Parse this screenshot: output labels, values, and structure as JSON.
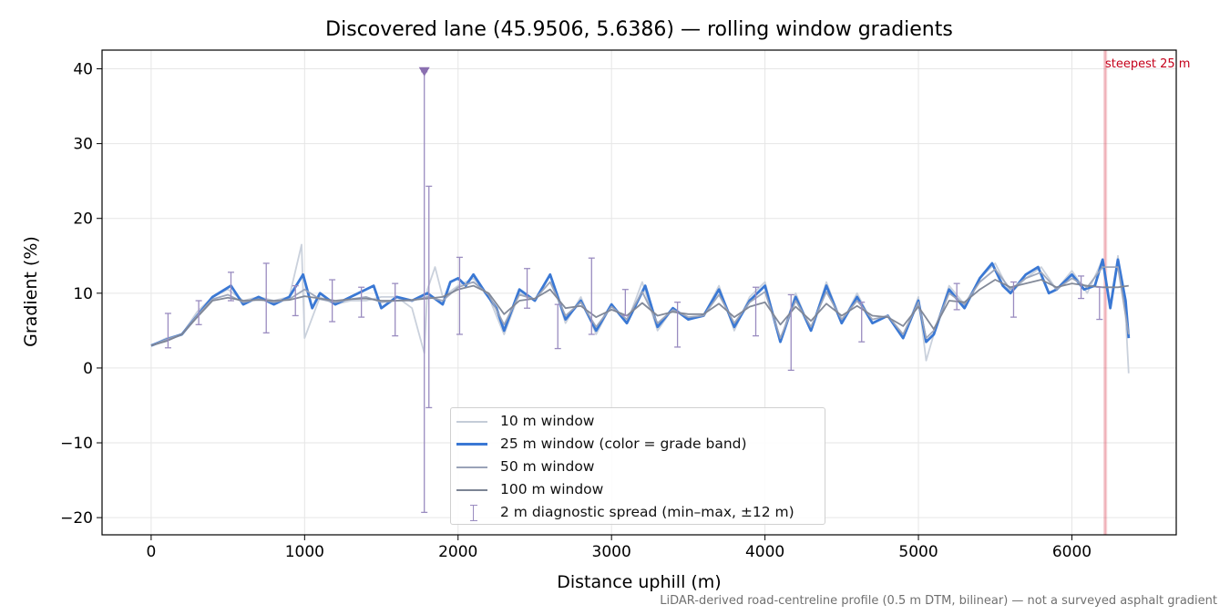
{
  "chart_data": {
    "type": "line",
    "title": "Discovered lane (45.9506, 5.6386) — rolling window gradients",
    "xlabel": "Distance uphill (m)",
    "ylabel": "Gradient (%)",
    "xlim": [
      -320,
      6680
    ],
    "ylim": [
      -22.3,
      42.5
    ],
    "x_ticks": [
      "0",
      "1000",
      "2000",
      "3000",
      "4000",
      "5000",
      "6000"
    ],
    "y_ticks": [
      "−20",
      "−10",
      "0",
      "10",
      "20",
      "30",
      "40"
    ],
    "grid": true,
    "legend_position": "lower center",
    "series": [
      {
        "name": "10 m window",
        "color": "#c4ccd8",
        "x": [
          0,
          100,
          200,
          300,
          400,
          500,
          600,
          700,
          800,
          900,
          980,
          1000,
          1100,
          1200,
          1300,
          1400,
          1500,
          1600,
          1700,
          1780,
          1800,
          1850,
          1900,
          2000,
          2100,
          2200,
          2300,
          2400,
          2500,
          2600,
          2700,
          2800,
          2900,
          3000,
          3100,
          3200,
          3300,
          3400,
          3500,
          3600,
          3700,
          3800,
          3900,
          4000,
          4100,
          4200,
          4300,
          4400,
          4500,
          4600,
          4700,
          4800,
          4900,
          5000,
          5050,
          5100,
          5200,
          5300,
          5400,
          5500,
          5600,
          5700,
          5800,
          5900,
          6000,
          6100,
          6200,
          6250,
          6300,
          6350,
          6370
        ],
        "values": [
          3.0,
          4.0,
          4.5,
          7.5,
          9.5,
          10.5,
          9.0,
          9.5,
          9.0,
          9.5,
          16.5,
          4.0,
          9.5,
          8.5,
          9.0,
          9.0,
          9.5,
          9.5,
          8.0,
          2.0,
          10.5,
          13.5,
          9.5,
          11.0,
          12.0,
          9.5,
          4.5,
          10.0,
          9.0,
          12.5,
          6.0,
          9.5,
          4.5,
          8.5,
          6.0,
          11.5,
          5.0,
          8.0,
          6.5,
          7.0,
          11.0,
          5.0,
          9.5,
          11.5,
          3.5,
          10.0,
          5.0,
          11.5,
          6.0,
          10.0,
          6.0,
          7.0,
          4.0,
          9.5,
          1.0,
          4.5,
          11.0,
          8.5,
          12.0,
          14.0,
          10.0,
          12.0,
          13.5,
          10.5,
          13.0,
          10.0,
          14.5,
          8.5,
          15.0,
          7.0,
          -0.7
        ]
      },
      {
        "name": "25 m window (color = grade band)",
        "color": "#3a78d4",
        "x": [
          0,
          100,
          200,
          300,
          400,
          520,
          600,
          700,
          800,
          900,
          990,
          1050,
          1100,
          1200,
          1300,
          1450,
          1500,
          1600,
          1700,
          1800,
          1900,
          1950,
          2000,
          2050,
          2100,
          2180,
          2250,
          2300,
          2400,
          2500,
          2600,
          2700,
          2800,
          2900,
          3000,
          3100,
          3220,
          3300,
          3400,
          3500,
          3600,
          3700,
          3800,
          3900,
          4000,
          4100,
          4200,
          4300,
          4400,
          4500,
          4600,
          4700,
          4800,
          4900,
          5000,
          5050,
          5100,
          5200,
          5300,
          5400,
          5480,
          5550,
          5600,
          5700,
          5780,
          5850,
          5900,
          6000,
          6080,
          6150,
          6200,
          6250,
          6300,
          6350,
          6370
        ],
        "values": [
          3.0,
          3.8,
          4.5,
          7.0,
          9.5,
          11.0,
          8.5,
          9.5,
          8.5,
          9.5,
          12.5,
          8.0,
          10.0,
          8.5,
          9.5,
          11.0,
          8.0,
          9.5,
          9.0,
          10.0,
          8.5,
          11.5,
          12.0,
          11.0,
          12.5,
          10.0,
          8.0,
          5.0,
          10.5,
          9.0,
          12.5,
          6.5,
          9.0,
          5.0,
          8.5,
          6.0,
          11.0,
          5.5,
          8.0,
          6.5,
          7.0,
          10.5,
          5.5,
          9.0,
          11.0,
          3.5,
          9.5,
          5.0,
          11.0,
          6.0,
          9.5,
          6.0,
          7.0,
          4.0,
          9.0,
          3.5,
          4.5,
          10.5,
          8.0,
          12.0,
          14.0,
          11.0,
          10.0,
          12.5,
          13.5,
          10.0,
          10.5,
          12.5,
          10.5,
          11.0,
          14.5,
          8.0,
          14.5,
          9.0,
          4.0
        ]
      },
      {
        "name": "50 m window",
        "color": "#9aa3b8",
        "x": [
          0,
          100,
          200,
          300,
          400,
          500,
          600,
          700,
          800,
          900,
          1000,
          1100,
          1200,
          1300,
          1400,
          1500,
          1600,
          1700,
          1800,
          1900,
          2000,
          2100,
          2200,
          2300,
          2400,
          2500,
          2600,
          2700,
          2800,
          2900,
          3000,
          3100,
          3200,
          3300,
          3400,
          3500,
          3600,
          3700,
          3800,
          3900,
          4000,
          4100,
          4200,
          4300,
          4400,
          4500,
          4600,
          4700,
          4800,
          4900,
          5000,
          5050,
          5100,
          5200,
          5300,
          5400,
          5500,
          5600,
          5700,
          5800,
          5900,
          6000,
          6100,
          6200,
          6300,
          6370
        ],
        "values": [
          3.0,
          3.8,
          4.5,
          7.0,
          9.2,
          9.8,
          8.8,
          9.2,
          8.8,
          9.2,
          10.5,
          9.2,
          8.8,
          9.2,
          9.5,
          8.8,
          9.0,
          9.0,
          9.5,
          9.0,
          10.8,
          11.5,
          9.8,
          5.8,
          9.8,
          9.2,
          11.5,
          7.0,
          8.8,
          5.5,
          8.2,
          6.5,
          10.2,
          6.0,
          7.8,
          6.8,
          7.0,
          9.8,
          6.0,
          8.8,
          10.2,
          4.0,
          9.0,
          5.5,
          10.2,
          6.5,
          9.0,
          6.5,
          7.0,
          4.5,
          8.8,
          4.0,
          5.0,
          10.0,
          8.5,
          11.5,
          13.2,
          10.5,
          12.0,
          12.8,
          10.5,
          12.0,
          10.8,
          13.5,
          13.5,
          4.5
        ]
      },
      {
        "name": "100 m window",
        "color": "#7c8494",
        "x": [
          0,
          100,
          200,
          300,
          400,
          500,
          600,
          700,
          800,
          900,
          1000,
          1100,
          1200,
          1300,
          1400,
          1500,
          1600,
          1700,
          1800,
          1900,
          2000,
          2100,
          2200,
          2300,
          2400,
          2500,
          2600,
          2700,
          2800,
          2900,
          3000,
          3100,
          3200,
          3300,
          3400,
          3500,
          3600,
          3700,
          3800,
          3900,
          4000,
          4100,
          4200,
          4300,
          4400,
          4500,
          4600,
          4700,
          4800,
          4900,
          5000,
          5100,
          5200,
          5300,
          5400,
          5500,
          5600,
          5700,
          5800,
          5900,
          6000,
          6100,
          6200,
          6300,
          6370
        ],
        "values": [
          3.0,
          3.6,
          4.5,
          6.8,
          9.0,
          9.4,
          9.0,
          9.1,
          9.0,
          9.1,
          9.6,
          9.3,
          9.0,
          9.2,
          9.3,
          9.0,
          9.0,
          9.1,
          9.3,
          9.5,
          10.5,
          11.0,
          10.0,
          7.2,
          9.0,
          9.3,
          10.5,
          8.0,
          8.3,
          6.8,
          7.8,
          7.0,
          8.7,
          7.0,
          7.5,
          7.2,
          7.2,
          8.6,
          6.8,
          8.2,
          8.8,
          5.8,
          8.2,
          6.3,
          8.6,
          7.0,
          8.3,
          7.0,
          6.8,
          5.6,
          8.2,
          5.2,
          9.0,
          8.8,
          10.5,
          11.8,
          10.8,
          11.3,
          11.8,
          10.8,
          11.3,
          11.0,
          10.8,
          10.8,
          11.0
        ]
      }
    ],
    "error_bars": {
      "name": "2 m diagnostic spread (min–max, ±12 m)",
      "color": "#9a8cc0",
      "points": [
        {
          "x": 110,
          "low": 2.7,
          "high": 7.3
        },
        {
          "x": 310,
          "low": 5.8,
          "high": 9.0
        },
        {
          "x": 520,
          "low": 9.0,
          "high": 12.8
        },
        {
          "x": 750,
          "low": 4.7,
          "high": 14.0
        },
        {
          "x": 940,
          "low": 7.0,
          "high": 11.0
        },
        {
          "x": 1180,
          "low": 6.2,
          "high": 11.8
        },
        {
          "x": 1370,
          "low": 6.8,
          "high": 10.8
        },
        {
          "x": 1590,
          "low": 4.3,
          "high": 11.3
        },
        {
          "x": 1780,
          "low": -19.3,
          "high": 39.6
        },
        {
          "x": 1810,
          "low": -5.3,
          "high": 24.3
        },
        {
          "x": 2010,
          "low": 4.5,
          "high": 14.8
        },
        {
          "x": 2450,
          "low": 8.0,
          "high": 13.3
        },
        {
          "x": 2650,
          "low": 2.6,
          "high": 8.5
        },
        {
          "x": 2870,
          "low": 4.5,
          "high": 14.7
        },
        {
          "x": 3090,
          "low": 7.0,
          "high": 10.5
        },
        {
          "x": 3430,
          "low": 2.8,
          "high": 8.8
        },
        {
          "x": 3940,
          "low": 4.3,
          "high": 10.8
        },
        {
          "x": 4170,
          "low": -0.3,
          "high": 9.8
        },
        {
          "x": 4630,
          "low": 3.5,
          "high": 8.8
        },
        {
          "x": 5250,
          "low": 7.8,
          "high": 11.3
        },
        {
          "x": 5620,
          "low": 6.8,
          "high": 11.5
        },
        {
          "x": 6060,
          "low": 9.3,
          "high": 12.3
        },
        {
          "x": 6180,
          "low": 6.5,
          "high": 10.8
        }
      ],
      "clipped_marker": {
        "x": 1780,
        "y": 39.6,
        "symbol": "triangle-down"
      }
    },
    "highlight": {
      "label": "steepest 25 m",
      "x_start": 6205,
      "x_end": 6230,
      "color": "#e06070"
    },
    "footnote": "LiDAR-derived road-centreline profile (0.5 m DTM, bilinear) — not a surveyed asphalt gradient"
  }
}
